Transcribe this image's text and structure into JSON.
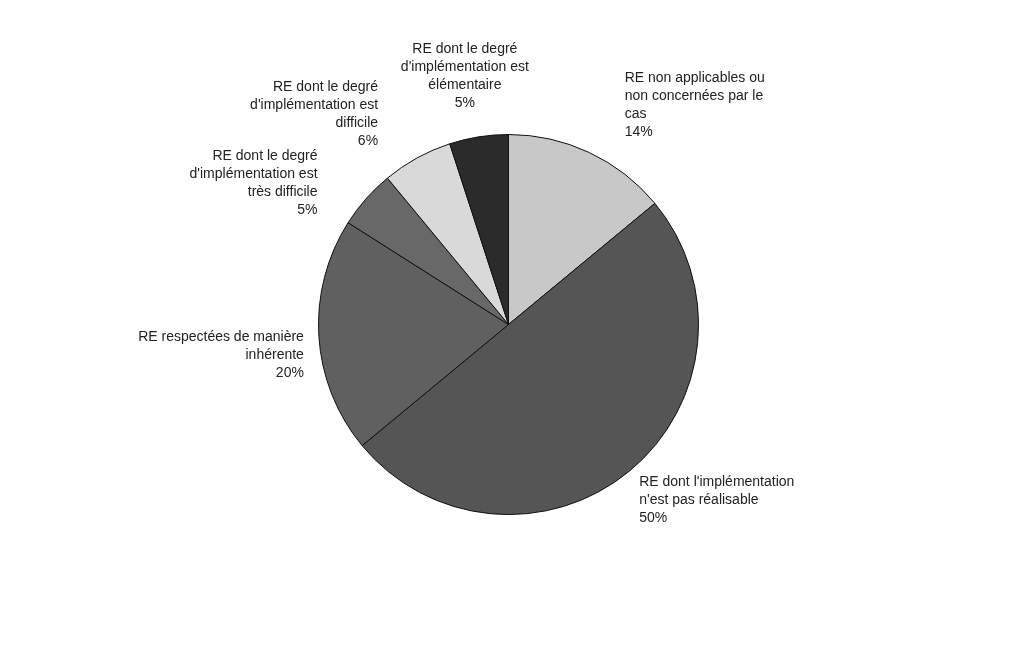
{
  "chart_data": {
    "type": "pie",
    "categories": [
      "RE non applicables ou non concernées par le cas",
      "RE dont l'implémentation n'est pas réalisable",
      "RE respectées de manière inhérente",
      "RE dont le degré d'implémentation est très difficile",
      "RE dont le degré d'implémentation est difficile",
      "RE dont le degré d'implémentation est élémentaire"
    ],
    "values": [
      14,
      50,
      20,
      5,
      6,
      5
    ],
    "value_labels": [
      "14%",
      "50%",
      "20%",
      "5%",
      "6%",
      "5%"
    ],
    "colors": [
      "#c8c8c8",
      "#555555",
      "#606060",
      "#686868",
      "#d9d9d9",
      "#2b2b2b"
    ]
  }
}
